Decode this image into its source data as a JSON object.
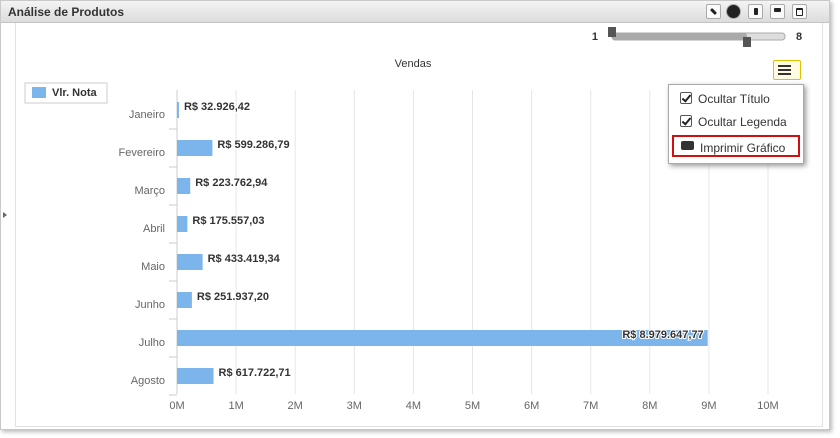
{
  "panel": {
    "title": "Análise de Produtos"
  },
  "slider": {
    "min_label": "1",
    "max_label": "8"
  },
  "menu": {
    "items": [
      "Ocultar Título",
      "Ocultar Legenda",
      "Imprimir Gráfico"
    ]
  },
  "chart_data": {
    "type": "bar",
    "orientation": "horizontal",
    "title": "Vendas",
    "categories": [
      "Janeiro",
      "Fevereiro",
      "Março",
      "Abril",
      "Maio",
      "Junho",
      "Julho",
      "Agosto"
    ],
    "series": [
      {
        "name": "Vlr. Nota",
        "color": "#7cb5ec",
        "values": [
          32926.42,
          599286.79,
          223762.94,
          175557.03,
          433419.34,
          251937.2,
          8979647.77,
          617722.71
        ],
        "value_labels": [
          "R$ 32.926,42",
          "R$ 599.286,79",
          "R$ 223.762,94",
          "R$ 175.557,03",
          "R$ 433.419,34",
          "R$ 251.937,20",
          "R$ 8.979.647,77",
          "R$ 617.722,71"
        ]
      }
    ],
    "xlim": [
      0,
      10000000
    ],
    "xticks": [
      {
        "value": 0,
        "label": "0M"
      },
      {
        "value": 1000000,
        "label": "1M"
      },
      {
        "value": 2000000,
        "label": "2M"
      },
      {
        "value": 3000000,
        "label": "3M"
      },
      {
        "value": 4000000,
        "label": "4M"
      },
      {
        "value": 5000000,
        "label": "5M"
      },
      {
        "value": 6000000,
        "label": "6M"
      },
      {
        "value": 7000000,
        "label": "7M"
      },
      {
        "value": 8000000,
        "label": "8M"
      },
      {
        "value": 9000000,
        "label": "9M"
      },
      {
        "value": 10000000,
        "label": "10M"
      }
    ],
    "grid": true,
    "legend": "top-left"
  }
}
